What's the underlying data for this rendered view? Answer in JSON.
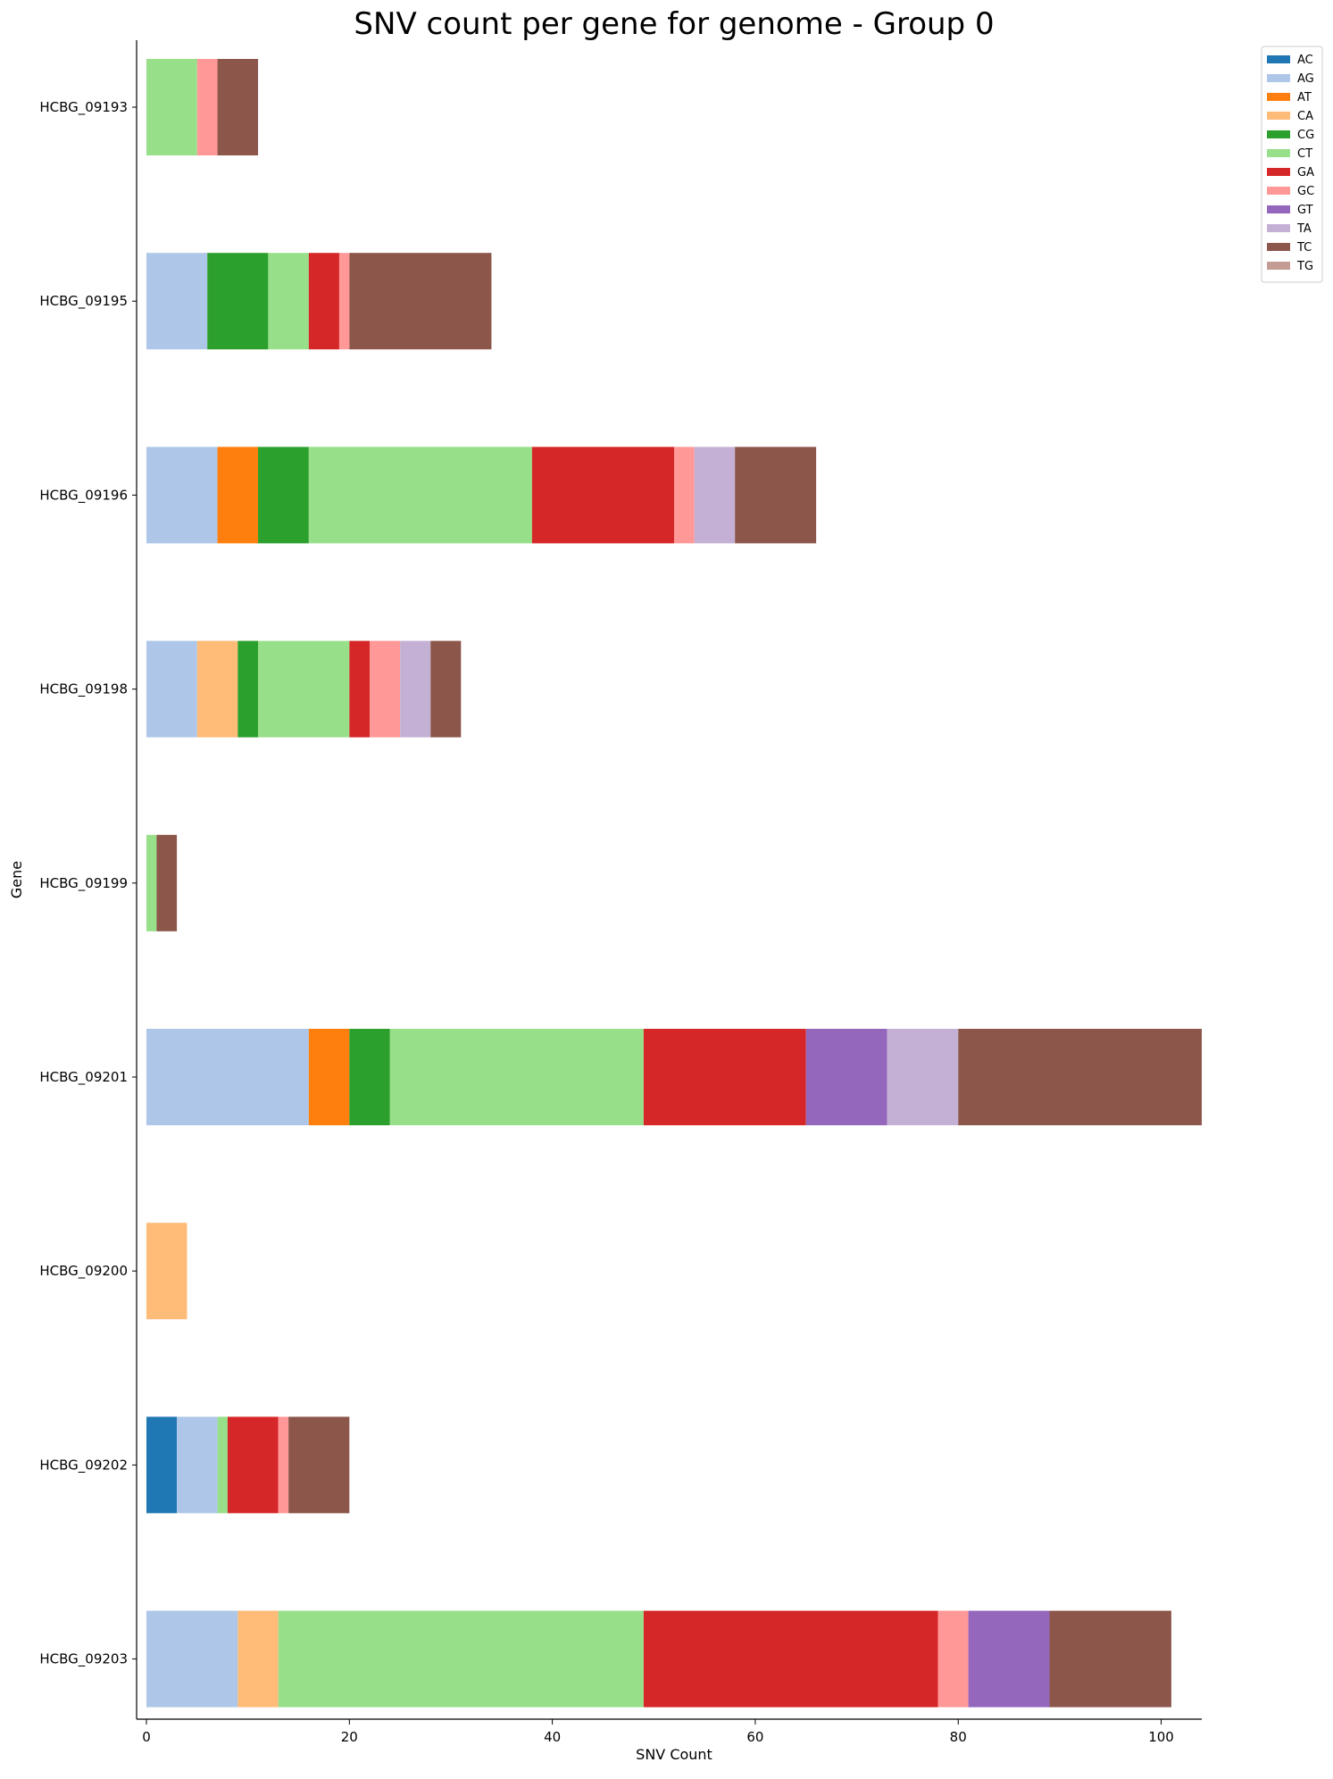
{
  "chart_data": {
    "type": "bar",
    "orientation": "horizontal",
    "stacked": true,
    "title": "SNV count per gene for genome - Group 0",
    "xlabel": "SNV Count",
    "ylabel": "Gene",
    "xlim": [
      0,
      104
    ],
    "xticks": [
      "0",
      "20",
      "40",
      "60",
      "80",
      "100"
    ],
    "categories": [
      "HCBG_09193",
      "HCBG_09195",
      "HCBG_09196",
      "HCBG_09198",
      "HCBG_09199",
      "HCBG_09201",
      "HCBG_09200",
      "HCBG_09202",
      "HCBG_09203"
    ],
    "grid": false,
    "legend_position": "top-right",
    "series": [
      {
        "name": "AC",
        "color": "#1f77b4",
        "values": [
          0,
          0,
          0,
          0,
          0,
          0,
          0,
          3,
          0
        ]
      },
      {
        "name": "AG",
        "color": "#aec7e8",
        "values": [
          0,
          6,
          7,
          5,
          0,
          16,
          0,
          4,
          9
        ]
      },
      {
        "name": "AT",
        "color": "#ff7f0e",
        "values": [
          0,
          0,
          4,
          0,
          0,
          4,
          0,
          0,
          0
        ]
      },
      {
        "name": "CA",
        "color": "#ffbb78",
        "values": [
          0,
          0,
          0,
          4,
          0,
          0,
          4,
          0,
          4
        ]
      },
      {
        "name": "CG",
        "color": "#2ca02c",
        "values": [
          0,
          6,
          5,
          2,
          0,
          4,
          0,
          0,
          0
        ]
      },
      {
        "name": "CT",
        "color": "#98df8a",
        "values": [
          5,
          4,
          22,
          9,
          1,
          25,
          0,
          1,
          36
        ]
      },
      {
        "name": "GA",
        "color": "#d62728",
        "values": [
          0,
          3,
          14,
          2,
          0,
          16,
          0,
          5,
          29
        ]
      },
      {
        "name": "GC",
        "color": "#ff9896",
        "values": [
          2,
          1,
          2,
          3,
          0,
          0,
          0,
          1,
          3
        ]
      },
      {
        "name": "GT",
        "color": "#9467bd",
        "values": [
          0,
          0,
          0,
          0,
          0,
          8,
          0,
          0,
          8
        ]
      },
      {
        "name": "TA",
        "color": "#c5b0d5",
        "values": [
          0,
          0,
          4,
          3,
          0,
          7,
          0,
          0,
          0
        ]
      },
      {
        "name": "TC",
        "color": "#8c564b",
        "values": [
          4,
          14,
          8,
          3,
          2,
          24,
          0,
          6,
          12
        ]
      },
      {
        "name": "TG",
        "color": "#c49c94",
        "values": [
          0,
          0,
          0,
          0,
          0,
          0,
          0,
          0,
          0
        ]
      }
    ]
  }
}
